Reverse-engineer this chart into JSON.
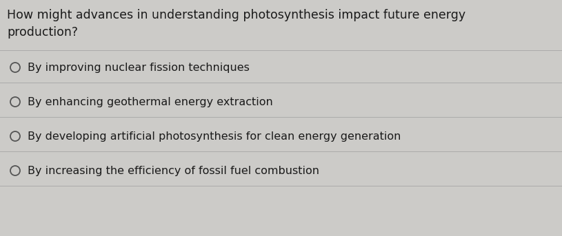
{
  "question_line1": "How might advances in understanding photosynthesis impact future energy",
  "question_line2": "production?",
  "options": [
    "By improving nuclear fission techniques",
    "By enhancing geothermal energy extraction",
    "By developing artificial photosynthesis for clean energy generation",
    "By increasing the efficiency of fossil fuel combustion"
  ],
  "bg_color": "#cccbc8",
  "text_color": "#1a1a1a",
  "question_fontsize": 12.5,
  "option_fontsize": 11.5,
  "line_color": "#aaaaaa",
  "question_font_weight": "normal"
}
